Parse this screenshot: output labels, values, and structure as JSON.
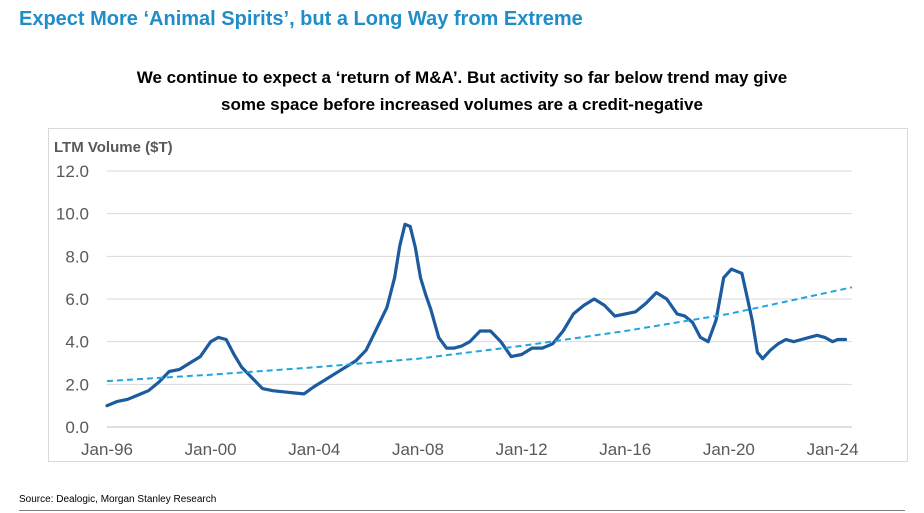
{
  "header": {
    "title": "Expect More ‘Animal Spirits’, but a Long Way from Extreme",
    "subtitle_line1": "We continue to expect a ‘return of M&A’. But activity so far below trend may give",
    "subtitle_line2": "some space before increased volumes are a credit-negative"
  },
  "footer": {
    "source": "Source: Dealogic, Morgan Stanley Research"
  },
  "colors": {
    "title": "#1f8dc8",
    "series_line": "#1b5b9e",
    "trend_line": "#21a6dc",
    "grid": "#d9d9d9",
    "axis_text": "#595959"
  },
  "chart_data": {
    "type": "line",
    "title": "",
    "ylabel": "LTM Volume ($T)",
    "xlabel": "",
    "ylim": [
      0,
      12
    ],
    "yticks": [
      "0.0",
      "2.0",
      "4.0",
      "6.0",
      "8.0",
      "10.0",
      "12.0"
    ],
    "xlim": [
      1996.0,
      2024.75
    ],
    "xticks": [
      {
        "label": "Jan-96",
        "value": 1996
      },
      {
        "label": "Jan-00",
        "value": 2000
      },
      {
        "label": "Jan-04",
        "value": 2004
      },
      {
        "label": "Jan-08",
        "value": 2008
      },
      {
        "label": "Jan-12",
        "value": 2012
      },
      {
        "label": "Jan-16",
        "value": 2016
      },
      {
        "label": "Jan-20",
        "value": 2020
      },
      {
        "label": "Jan-24",
        "value": 2024
      }
    ],
    "grid": true,
    "series": [
      {
        "style": "solid",
        "x": [
          1996.0,
          1996.4,
          1996.8,
          1997.2,
          1997.6,
          1998.0,
          1998.4,
          1998.8,
          1999.2,
          1999.6,
          2000.0,
          2000.3,
          2000.6,
          2000.9,
          2001.2,
          2001.6,
          2002.0,
          2002.4,
          2002.8,
          2003.2,
          2003.6,
          2004.0,
          2004.4,
          2004.8,
          2005.2,
          2005.6,
          2006.0,
          2006.4,
          2006.8,
          2007.1,
          2007.3,
          2007.5,
          2007.7,
          2007.9,
          2008.1,
          2008.3,
          2008.5,
          2008.8,
          2009.1,
          2009.4,
          2009.7,
          2010.0,
          2010.4,
          2010.8,
          2011.2,
          2011.6,
          2012.0,
          2012.4,
          2012.8,
          2013.2,
          2013.6,
          2014.0,
          2014.4,
          2014.8,
          2015.2,
          2015.6,
          2016.0,
          2016.4,
          2016.8,
          2017.2,
          2017.6,
          2018.0,
          2018.3,
          2018.6,
          2018.9,
          2019.2,
          2019.5,
          2019.8,
          2020.1,
          2020.3,
          2020.5,
          2020.7,
          2020.9,
          2021.1,
          2021.3,
          2021.6,
          2021.9,
          2022.2,
          2022.5,
          2022.8,
          2023.1,
          2023.4,
          2023.7,
          2024.0,
          2024.2,
          2024.5
        ],
        "values": [
          1.0,
          1.2,
          1.3,
          1.5,
          1.7,
          2.1,
          2.6,
          2.7,
          3.0,
          3.3,
          4.0,
          4.2,
          4.1,
          3.4,
          2.8,
          2.3,
          1.8,
          1.7,
          1.65,
          1.6,
          1.55,
          1.9,
          2.2,
          2.5,
          2.8,
          3.1,
          3.6,
          4.6,
          5.6,
          7.0,
          8.5,
          9.5,
          9.4,
          8.4,
          7.0,
          6.2,
          5.5,
          4.2,
          3.7,
          3.7,
          3.8,
          4.0,
          4.5,
          4.5,
          4.0,
          3.3,
          3.4,
          3.7,
          3.7,
          3.9,
          4.5,
          5.3,
          5.7,
          6.0,
          5.7,
          5.2,
          5.3,
          5.4,
          5.8,
          6.3,
          6.0,
          5.3,
          5.2,
          4.9,
          4.2,
          4.0,
          5.0,
          7.0,
          7.4,
          7.3,
          7.2,
          6.1,
          5.0,
          3.5,
          3.2,
          3.6,
          3.9,
          4.1,
          4.0,
          4.1,
          4.2,
          4.3,
          4.2,
          4.0,
          4.1,
          4.1
        ]
      },
      {
        "style": "dashed",
        "x": [
          1996.0,
          2000.0,
          2004.0,
          2008.0,
          2012.0,
          2016.0,
          2020.0,
          2024.75
        ],
        "values": [
          2.15,
          2.45,
          2.8,
          3.2,
          3.8,
          4.5,
          5.3,
          6.55
        ]
      }
    ]
  }
}
